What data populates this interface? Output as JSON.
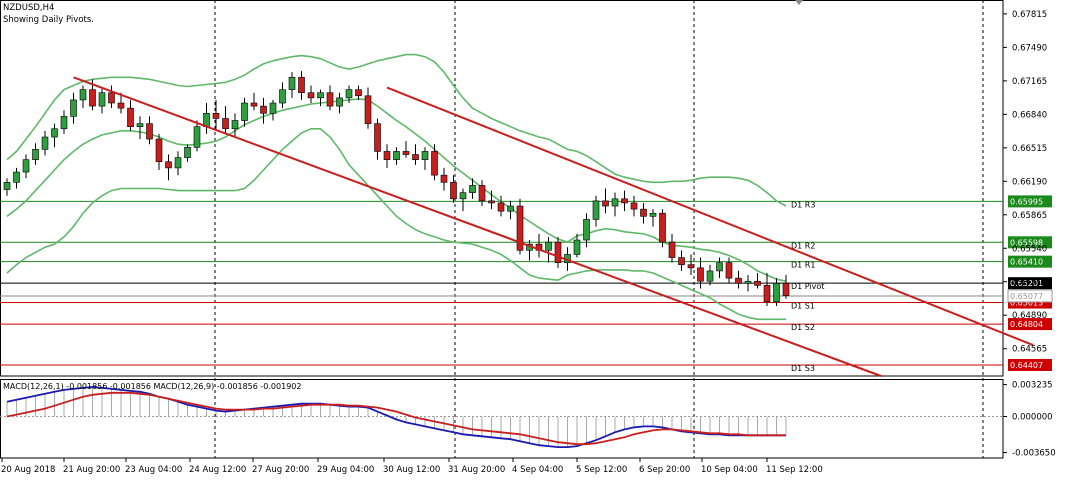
{
  "header": {
    "symbol_line": "NZDUSD,H4",
    "subtitle": "Showing Daily Pivots."
  },
  "chart_data": {
    "type": "candlestick",
    "symbol": "NZDUSD",
    "timeframe": "H4",
    "price_axis": {
      "ticks": [
        "0.67815",
        "0.67490",
        "0.67165",
        "0.66840",
        "0.66515",
        "0.66190",
        "0.65865",
        "0.65540",
        "0.65215",
        "0.64890",
        "0.64565"
      ],
      "ylim": [
        0.643,
        0.6795
      ]
    },
    "time_axis": {
      "labels": [
        "20 Aug 2018",
        "21 Aug 20:00",
        "23 Aug 04:00",
        "24 Aug 12:00",
        "27 Aug 20:00",
        "29 Aug 04:00",
        "30 Aug 12:00",
        "31 Aug 20:00",
        "4 Sep 04:00",
        "5 Sep 12:00",
        "6 Sep 20:00",
        "10 Sep 04:00",
        "11 Sep 12:00"
      ]
    },
    "pivots": [
      {
        "name": "D1 R3",
        "value": "0.65995",
        "price": 0.65995,
        "color": "#1a8a1a",
        "badge": "#1a8a1a"
      },
      {
        "name": "D1 R2",
        "value": "0.65598",
        "price": 0.65598,
        "color": "#1a8a1a",
        "badge": "#1a8a1a"
      },
      {
        "name": "D1 R1",
        "value": "0.65410",
        "price": 0.6541,
        "color": "#1a8a1a",
        "badge": "#1a8a1a"
      },
      {
        "name": "D1 Pivot",
        "value": "0.65201",
        "price": 0.65201,
        "color": "#000000",
        "badge": "#000000"
      },
      {
        "name": "D1 S1",
        "value": "0.65013",
        "price": 0.65013,
        "color": "#cc0000",
        "badge": "#cc0000"
      },
      {
        "name": "D1 S2",
        "value": "0.64804",
        "price": 0.64804,
        "color": "#cc0000",
        "badge": "#cc0000"
      },
      {
        "name": "D1 S3",
        "value": "0.64407",
        "price": 0.64407,
        "color": "#cc0000",
        "badge": "#cc0000"
      }
    ],
    "current_price": {
      "value": "0.65077",
      "price": 0.65077
    },
    "candles": [
      [
        0.6611,
        0.6622,
        0.6605,
        0.6618
      ],
      [
        0.6618,
        0.6632,
        0.6612,
        0.6628
      ],
      [
        0.6628,
        0.6645,
        0.6622,
        0.664
      ],
      [
        0.664,
        0.6656,
        0.6635,
        0.665
      ],
      [
        0.665,
        0.6668,
        0.6644,
        0.6662
      ],
      [
        0.6662,
        0.6675,
        0.6652,
        0.667
      ],
      [
        0.667,
        0.6688,
        0.6665,
        0.6682
      ],
      [
        0.6682,
        0.6705,
        0.6675,
        0.6698
      ],
      [
        0.6698,
        0.6712,
        0.669,
        0.6708
      ],
      [
        0.6708,
        0.6718,
        0.6688,
        0.6692
      ],
      [
        0.6692,
        0.671,
        0.6685,
        0.6705
      ],
      [
        0.6705,
        0.6712,
        0.669,
        0.6695
      ],
      [
        0.6695,
        0.6705,
        0.6685,
        0.669
      ],
      [
        0.669,
        0.6698,
        0.6668,
        0.6672
      ],
      [
        0.6672,
        0.6682,
        0.666,
        0.6675
      ],
      [
        0.6675,
        0.6682,
        0.6655,
        0.666
      ],
      [
        0.666,
        0.6665,
        0.663,
        0.6638
      ],
      [
        0.6638,
        0.6645,
        0.662,
        0.6632
      ],
      [
        0.6632,
        0.6648,
        0.6625,
        0.6642
      ],
      [
        0.6642,
        0.6655,
        0.6638,
        0.6652
      ],
      [
        0.6652,
        0.6678,
        0.6648,
        0.6672
      ],
      [
        0.6672,
        0.6695,
        0.6665,
        0.6685
      ],
      [
        0.6685,
        0.6698,
        0.667,
        0.668
      ],
      [
        0.668,
        0.6692,
        0.6665,
        0.667
      ],
      [
        0.667,
        0.6685,
        0.6662,
        0.6678
      ],
      [
        0.6678,
        0.67,
        0.6672,
        0.6695
      ],
      [
        0.6695,
        0.6705,
        0.6688,
        0.6692
      ],
      [
        0.6692,
        0.67,
        0.6675,
        0.6685
      ],
      [
        0.6685,
        0.6698,
        0.6678,
        0.6695
      ],
      [
        0.6695,
        0.6715,
        0.669,
        0.6708
      ],
      [
        0.6708,
        0.6725,
        0.67,
        0.672
      ],
      [
        0.672,
        0.6726,
        0.6698,
        0.6705
      ],
      [
        0.6705,
        0.6712,
        0.6695,
        0.67
      ],
      [
        0.67,
        0.6708,
        0.6692,
        0.6705
      ],
      [
        0.6705,
        0.6712,
        0.6688,
        0.6692
      ],
      [
        0.6692,
        0.6705,
        0.6685,
        0.67
      ],
      [
        0.67,
        0.6712,
        0.6695,
        0.6708
      ],
      [
        0.6708,
        0.6712,
        0.6698,
        0.6702
      ],
      [
        0.6702,
        0.671,
        0.667,
        0.6675
      ],
      [
        0.6675,
        0.668,
        0.664,
        0.6648
      ],
      [
        0.6648,
        0.6655,
        0.6632,
        0.664
      ],
      [
        0.664,
        0.6652,
        0.6635,
        0.6648
      ],
      [
        0.6648,
        0.6658,
        0.6642,
        0.6645
      ],
      [
        0.6645,
        0.6655,
        0.6635,
        0.664
      ],
      [
        0.664,
        0.6652,
        0.663,
        0.6648
      ],
      [
        0.6648,
        0.6655,
        0.662,
        0.6625
      ],
      [
        0.6625,
        0.6632,
        0.661,
        0.6618
      ],
      [
        0.6618,
        0.6625,
        0.6598,
        0.6602
      ],
      [
        0.6602,
        0.6612,
        0.659,
        0.6608
      ],
      [
        0.6608,
        0.6622,
        0.6602,
        0.6615
      ],
      [
        0.6615,
        0.662,
        0.6595,
        0.66
      ],
      [
        0.66,
        0.661,
        0.6592,
        0.6598
      ],
      [
        0.6598,
        0.6605,
        0.6585,
        0.659
      ],
      [
        0.659,
        0.66,
        0.6582,
        0.6595
      ],
      [
        0.6595,
        0.6602,
        0.6548,
        0.6552
      ],
      [
        0.6552,
        0.6562,
        0.6542,
        0.6558
      ],
      [
        0.6558,
        0.6568,
        0.6545,
        0.6552
      ],
      [
        0.6552,
        0.6565,
        0.654,
        0.656
      ],
      [
        0.656,
        0.6565,
        0.6535,
        0.654
      ],
      [
        0.654,
        0.6555,
        0.6532,
        0.6548
      ],
      [
        0.6548,
        0.6568,
        0.6545,
        0.6562
      ],
      [
        0.6562,
        0.6588,
        0.6555,
        0.6582
      ],
      [
        0.6582,
        0.6605,
        0.6575,
        0.66
      ],
      [
        0.66,
        0.6612,
        0.6588,
        0.6595
      ],
      [
        0.6595,
        0.6608,
        0.6585,
        0.6602
      ],
      [
        0.6602,
        0.661,
        0.659,
        0.6598
      ],
      [
        0.6598,
        0.6605,
        0.6585,
        0.6592
      ],
      [
        0.6592,
        0.6598,
        0.6578,
        0.6585
      ],
      [
        0.6585,
        0.6592,
        0.6575,
        0.6588
      ],
      [
        0.6588,
        0.6592,
        0.6555,
        0.656
      ],
      [
        0.656,
        0.6568,
        0.654,
        0.6545
      ],
      [
        0.6545,
        0.6552,
        0.6532,
        0.6538
      ],
      [
        0.6538,
        0.6548,
        0.6528,
        0.6535
      ],
      [
        0.6535,
        0.6545,
        0.6515,
        0.6522
      ],
      [
        0.6522,
        0.6538,
        0.6518,
        0.6532
      ],
      [
        0.6532,
        0.6545,
        0.6525,
        0.654
      ],
      [
        0.654,
        0.6545,
        0.652,
        0.6525
      ],
      [
        0.6525,
        0.6532,
        0.6515,
        0.652
      ],
      [
        0.652,
        0.6528,
        0.6512,
        0.6522
      ],
      [
        0.6522,
        0.653,
        0.6515,
        0.6518
      ],
      [
        0.6518,
        0.653,
        0.6498,
        0.6502
      ],
      [
        0.6502,
        0.6525,
        0.6498,
        0.652
      ],
      [
        0.652,
        0.6528,
        0.6505,
        0.6508
      ]
    ],
    "bollinger_mid": [
      0.6585,
      0.6592,
      0.66,
      0.661,
      0.662,
      0.663,
      0.664,
      0.6648,
      0.6655,
      0.666,
      0.6664,
      0.6666,
      0.6668,
      0.6668,
      0.6667,
      0.6665,
      0.6662,
      0.6658,
      0.6655,
      0.6654,
      0.6655,
      0.6656,
      0.6658,
      0.6662,
      0.6668,
      0.6674,
      0.6678,
      0.6682,
      0.6685,
      0.6688,
      0.669,
      0.6692,
      0.6694,
      0.6695,
      0.6696,
      0.6697,
      0.6698,
      0.6699,
      0.6698,
      0.6692,
      0.6685,
      0.6678,
      0.6672,
      0.6665,
      0.6658,
      0.665,
      0.6642,
      0.6634,
      0.6627,
      0.662,
      0.6613,
      0.6606,
      0.6599,
      0.6593,
      0.6586,
      0.658,
      0.6574,
      0.6568,
      0.6563,
      0.656,
      0.6566,
      0.6568,
      0.6571,
      0.6573,
      0.6572,
      0.657,
      0.6569,
      0.6568,
      0.6565,
      0.656,
      0.6557,
      0.6556,
      0.6555,
      0.6553,
      0.6552,
      0.655,
      0.6547,
      0.6543,
      0.6538,
      0.6532,
      0.6528,
      0.6524,
      0.6522
    ],
    "bollinger_upper": [
      0.664,
      0.6648,
      0.666,
      0.6672,
      0.6685,
      0.6698,
      0.6708,
      0.6712,
      0.6716,
      0.6718,
      0.6719,
      0.672,
      0.672,
      0.672,
      0.6719,
      0.6718,
      0.6716,
      0.6714,
      0.6712,
      0.6711,
      0.6712,
      0.6713,
      0.6714,
      0.6715,
      0.6718,
      0.6722,
      0.6728,
      0.6733,
      0.6736,
      0.6738,
      0.674,
      0.6741,
      0.674,
      0.6738,
      0.6734,
      0.673,
      0.6728,
      0.673,
      0.6733,
      0.6736,
      0.6738,
      0.674,
      0.6742,
      0.6742,
      0.674,
      0.6735,
      0.6725,
      0.6712,
      0.67,
      0.669,
      0.6685,
      0.668,
      0.6676,
      0.6672,
      0.6668,
      0.6665,
      0.6662,
      0.666,
      0.6655,
      0.665,
      0.6648,
      0.6644,
      0.6638,
      0.6632,
      0.6626,
      0.6623,
      0.6621,
      0.6619,
      0.6618,
      0.6618,
      0.6619,
      0.6619,
      0.662,
      0.6622,
      0.6623,
      0.6623,
      0.6623,
      0.6622,
      0.662,
      0.6615,
      0.6608,
      0.66,
      0.6595
    ],
    "bollinger_lower": [
      0.653,
      0.6538,
      0.6545,
      0.655,
      0.6555,
      0.6558,
      0.6565,
      0.6575,
      0.6588,
      0.6598,
      0.6605,
      0.661,
      0.6612,
      0.6612,
      0.6612,
      0.6612,
      0.6612,
      0.6611,
      0.661,
      0.661,
      0.661,
      0.661,
      0.661,
      0.661,
      0.661,
      0.6612,
      0.662,
      0.663,
      0.664,
      0.665,
      0.6658,
      0.6666,
      0.667,
      0.667,
      0.6662,
      0.665,
      0.6635,
      0.6625,
      0.6615,
      0.6605,
      0.6595,
      0.6585,
      0.6578,
      0.6572,
      0.6568,
      0.6565,
      0.6562,
      0.656,
      0.6559,
      0.6558,
      0.6555,
      0.6552,
      0.6548,
      0.6542,
      0.6535,
      0.6528,
      0.6525,
      0.6524,
      0.6523,
      0.6528,
      0.653,
      0.6532,
      0.6533,
      0.6533,
      0.6533,
      0.6533,
      0.6532,
      0.6532,
      0.653,
      0.6526,
      0.6522,
      0.6518,
      0.6514,
      0.651,
      0.6506,
      0.65,
      0.6495,
      0.649,
      0.6487,
      0.6485,
      0.6485,
      0.6485,
      0.6485
    ],
    "trend_lines": [
      {
        "from_index": 7,
        "from_price": 0.672,
        "to_index": 92,
        "to_price": 0.643
      },
      {
        "from_index": 40,
        "from_price": 0.671,
        "to_index": 108,
        "to_price": 0.646
      }
    ],
    "macd": {
      "label": "MACD(12,26,1) -0.001856 -0.001856 MACD(12,26,9) -0.001856 -0.001902",
      "ticks": [
        "0.003235",
        "0.000000",
        "-0.003650"
      ],
      "ylim": [
        -0.0042,
        0.0038
      ],
      "hist": [
        0.0015,
        0.0017,
        0.0019,
        0.0021,
        0.0023,
        0.0025,
        0.0027,
        0.0028,
        0.0029,
        0.003,
        0.0029,
        0.0028,
        0.0027,
        0.0026,
        0.0025,
        0.0023,
        0.002,
        0.0018,
        0.0015,
        0.0012,
        0.001,
        0.0008,
        0.0006,
        0.0005,
        0.0006,
        0.0007,
        0.0008,
        0.0009,
        0.001,
        0.0011,
        0.0012,
        0.0013,
        0.0013,
        0.0013,
        0.0012,
        0.0011,
        0.001,
        0.001,
        0.0009,
        0.0005,
        0.0001,
        -0.0003,
        -0.0006,
        -0.0008,
        -0.001,
        -0.0012,
        -0.0014,
        -0.0016,
        -0.0018,
        -0.0019,
        -0.002,
        -0.0021,
        -0.0022,
        -0.0023,
        -0.0025,
        -0.0027,
        -0.0029,
        -0.003,
        -0.0031,
        -0.0031,
        -0.003,
        -0.0027,
        -0.0024,
        -0.002,
        -0.0016,
        -0.0013,
        -0.0011,
        -0.001,
        -0.001,
        -0.0011,
        -0.0013,
        -0.0015,
        -0.0016,
        -0.0017,
        -0.0018,
        -0.0018,
        -0.0019,
        -0.0019,
        -0.0019,
        -0.0019,
        -0.0019,
        -0.0019,
        -0.0019
      ],
      "signal": [
        0.0,
        0.0002,
        0.0004,
        0.0006,
        0.0008,
        0.0011,
        0.0014,
        0.0017,
        0.002,
        0.0022,
        0.0023,
        0.0024,
        0.0024,
        0.0024,
        0.0023,
        0.0022,
        0.002,
        0.0018,
        0.0016,
        0.0014,
        0.0012,
        0.001,
        0.0008,
        0.0007,
        0.0007,
        0.0007,
        0.0007,
        0.0008,
        0.0008,
        0.0009,
        0.001,
        0.0011,
        0.0012,
        0.0012,
        0.0012,
        0.0012,
        0.0011,
        0.0011,
        0.001,
        0.0009,
        0.0007,
        0.0005,
        0.0002,
        -0.0001,
        -0.0003,
        -0.0005,
        -0.0007,
        -0.0009,
        -0.0011,
        -0.0013,
        -0.0014,
        -0.0015,
        -0.0016,
        -0.0017,
        -0.0018,
        -0.002,
        -0.0022,
        -0.0024,
        -0.0026,
        -0.0027,
        -0.0028,
        -0.0028,
        -0.0027,
        -0.0025,
        -0.0023,
        -0.0021,
        -0.0018,
        -0.0016,
        -0.0014,
        -0.0013,
        -0.0013,
        -0.0014,
        -0.0015,
        -0.0016,
        -0.0017,
        -0.0017,
        -0.0018,
        -0.0018,
        -0.0019,
        -0.0019,
        -0.0019,
        -0.0019,
        -0.0019
      ]
    },
    "colors": {
      "bull": "#2e9e3f",
      "bear": "#c81e1e",
      "band": "#5fb86a",
      "trend": "#c81e1e",
      "macd_line": "#1a1ab0",
      "signal_line": "#c81e1e",
      "grid": "#000000"
    }
  }
}
